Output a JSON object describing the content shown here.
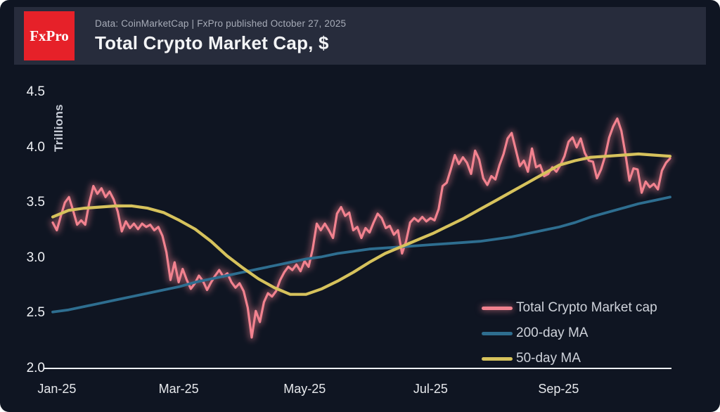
{
  "header": {
    "logo_text": "FxPro",
    "subtitle": "Data: CoinMarketCap | FxPro published October 27, 2025",
    "title": "Total Crypto Market Cap, $"
  },
  "colors": {
    "page_corner": "#ffffff",
    "background": "#0f1522",
    "header_band": "#272c3c",
    "logo_red": "#e62129",
    "title_text": "#f3f4f6",
    "subtitle_text": "#a7acb8",
    "axis_line": "#eef0f3",
    "tick_text": "#eef0f4",
    "series_market_cap": "#f2828f",
    "series_200dma": "#2e6e90",
    "series_50dma": "#d6c25c"
  },
  "chart_data": {
    "type": "line",
    "title": "Total Crypto Market Cap, $",
    "xlabel": "",
    "ylabel": "Trillions",
    "ylim": [
      2.0,
      4.5
    ],
    "grid": false,
    "legend_position": "bottom-right",
    "y_ticks": [
      4.5,
      4.0,
      3.5,
      3.0,
      2.5,
      2.0
    ],
    "x_total_days": 299,
    "x_ticks": [
      {
        "label": "Jan-25",
        "day": 2
      },
      {
        "label": "Mar-25",
        "day": 61
      },
      {
        "label": "May-25",
        "day": 122
      },
      {
        "label": "Jul-25",
        "day": 183
      },
      {
        "label": "Sep-25",
        "day": 245
      }
    ],
    "units": "trillions USD",
    "series": [
      {
        "name": "Total Crypto Market cap",
        "color": "#f2828f",
        "width": 3.2,
        "glow": true,
        "values": [
          3.32,
          3.25,
          3.38,
          3.5,
          3.55,
          3.43,
          3.3,
          3.34,
          3.3,
          3.5,
          3.65,
          3.58,
          3.63,
          3.55,
          3.6,
          3.53,
          3.42,
          3.24,
          3.33,
          3.27,
          3.31,
          3.26,
          3.31,
          3.28,
          3.3,
          3.25,
          3.28,
          3.2,
          3.05,
          2.8,
          2.96,
          2.78,
          2.9,
          2.8,
          2.72,
          2.77,
          2.84,
          2.79,
          2.71,
          2.78,
          2.84,
          2.89,
          2.83,
          2.86,
          2.78,
          2.73,
          2.77,
          2.7,
          2.55,
          2.28,
          2.52,
          2.42,
          2.6,
          2.68,
          2.65,
          2.7,
          2.8,
          2.87,
          2.92,
          2.89,
          2.94,
          2.88,
          2.97,
          2.92,
          3.08,
          3.31,
          3.25,
          3.31,
          3.25,
          3.18,
          3.4,
          3.46,
          3.38,
          3.41,
          3.25,
          3.28,
          3.18,
          3.27,
          3.23,
          3.32,
          3.4,
          3.36,
          3.27,
          3.29,
          3.21,
          3.25,
          3.04,
          3.15,
          3.32,
          3.36,
          3.33,
          3.37,
          3.33,
          3.36,
          3.34,
          3.44,
          3.65,
          3.68,
          3.8,
          3.93,
          3.85,
          3.91,
          3.86,
          3.76,
          3.97,
          3.89,
          3.72,
          3.66,
          3.74,
          3.71,
          3.84,
          3.94,
          4.08,
          4.13,
          3.98,
          3.83,
          3.88,
          3.78,
          3.99,
          3.82,
          3.84,
          3.74,
          3.76,
          3.82,
          3.78,
          3.84,
          3.92,
          4.05,
          4.09,
          4.0,
          4.08,
          3.95,
          3.88,
          3.87,
          3.72,
          3.8,
          3.92,
          4.09,
          4.19,
          4.26,
          4.15,
          3.94,
          3.7,
          3.81,
          3.8,
          3.59,
          3.69,
          3.64,
          3.67,
          3.62,
          3.79,
          3.86,
          3.9
        ]
      },
      {
        "name": "200-day MA",
        "color": "#2e6e90",
        "width": 3.8,
        "glow": false,
        "values": [
          2.51,
          2.53,
          2.56,
          2.59,
          2.62,
          2.65,
          2.68,
          2.71,
          2.74,
          2.78,
          2.81,
          2.84,
          2.87,
          2.9,
          2.93,
          2.96,
          2.99,
          3.01,
          3.04,
          3.06,
          3.08,
          3.09,
          3.1,
          3.11,
          3.12,
          3.13,
          3.14,
          3.15,
          3.17,
          3.19,
          3.22,
          3.25,
          3.28,
          3.32,
          3.37,
          3.41,
          3.45,
          3.49,
          3.52,
          3.55
        ]
      },
      {
        "name": "50-day MA",
        "color": "#d6c25c",
        "width": 4.2,
        "glow": false,
        "values": [
          3.37,
          3.43,
          3.45,
          3.46,
          3.47,
          3.47,
          3.45,
          3.41,
          3.34,
          3.26,
          3.15,
          3.02,
          2.91,
          2.81,
          2.73,
          2.67,
          2.67,
          2.72,
          2.79,
          2.87,
          2.96,
          3.04,
          3.1,
          3.16,
          3.22,
          3.29,
          3.36,
          3.44,
          3.52,
          3.6,
          3.68,
          3.76,
          3.84,
          3.88,
          3.91,
          3.92,
          3.93,
          3.94,
          3.93,
          3.92
        ]
      }
    ]
  }
}
